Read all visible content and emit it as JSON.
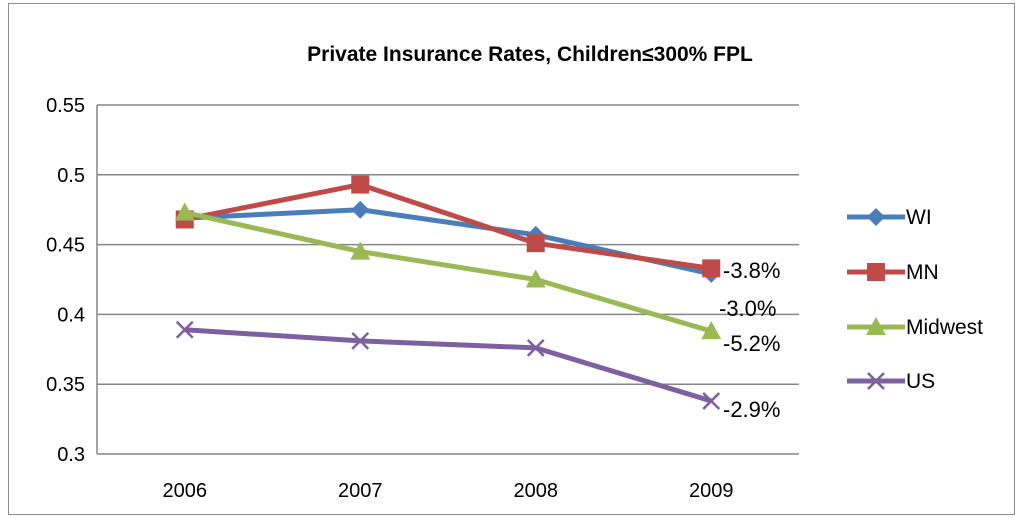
{
  "chart_data": {
    "type": "line",
    "title": "Private Insurance Rates, Children≤300% FPL",
    "xlabel": "",
    "ylabel": "",
    "categories": [
      "2006",
      "2007",
      "2008",
      "2009"
    ],
    "ylim": [
      0.3,
      0.55
    ],
    "yticks": [
      "0.3",
      "0.35",
      "0.4",
      "0.45",
      "0.5",
      "0.55"
    ],
    "grid": true,
    "legend_position": "right",
    "series": [
      {
        "name": "WI",
        "values": [
          0.469,
          0.475,
          0.457,
          0.429
        ],
        "color": "#4a7ebb",
        "marker": "diamond"
      },
      {
        "name": "MN",
        "values": [
          0.468,
          0.493,
          0.451,
          0.433
        ],
        "color": "#be4b48",
        "marker": "square"
      },
      {
        "name": "Midwest",
        "values": [
          0.473,
          0.445,
          0.425,
          0.388
        ],
        "color": "#98b954",
        "marker": "triangle"
      },
      {
        "name": "US",
        "values": [
          0.389,
          0.381,
          0.376,
          0.338
        ],
        "color": "#7d60a0",
        "marker": "x"
      }
    ],
    "annotations": [
      "-3.8%",
      "-3.0%",
      "-5.2%",
      "-2.9%"
    ]
  }
}
